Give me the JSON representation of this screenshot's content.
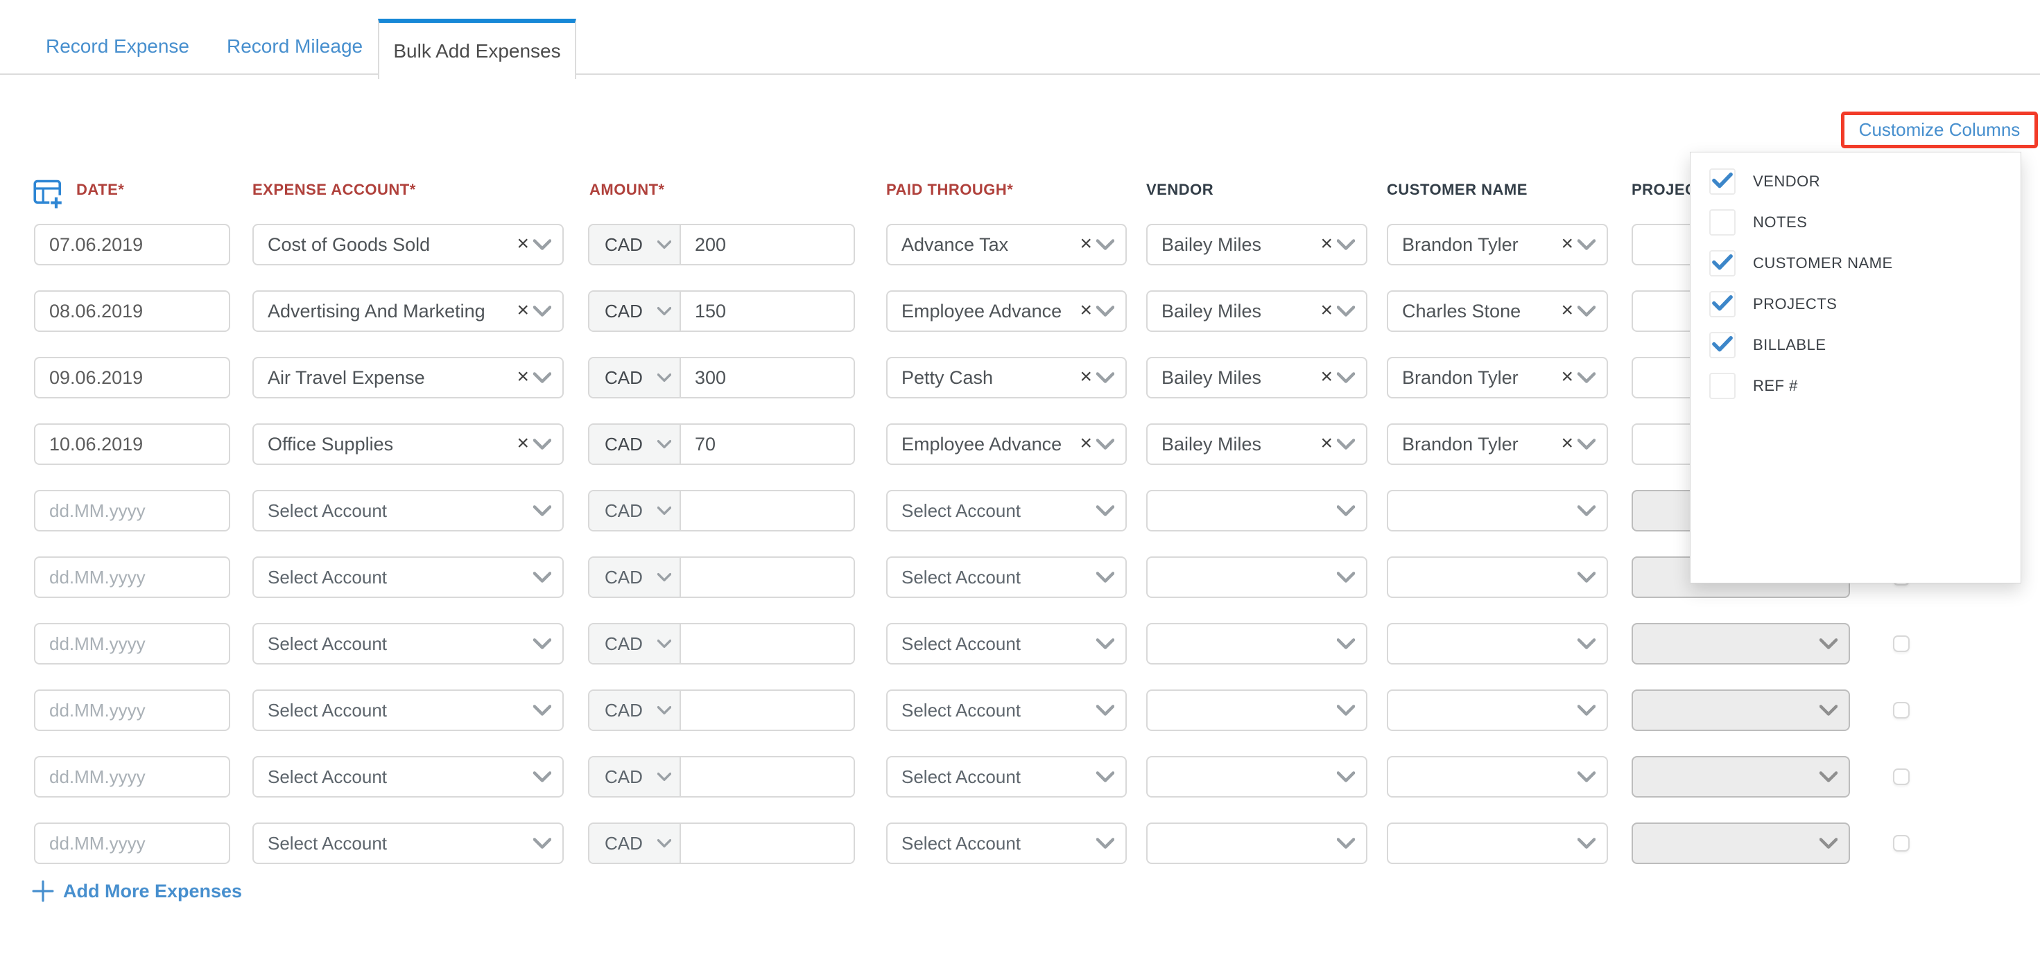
{
  "tabs": {
    "items": [
      {
        "label": "Record Expense",
        "active": false
      },
      {
        "label": "Record Mileage",
        "active": false
      },
      {
        "label": "Bulk Add Expenses",
        "active": true
      }
    ]
  },
  "toolbar": {
    "customize_columns_label": "Customize Columns"
  },
  "columns_menu": {
    "items": [
      {
        "label": "VENDOR",
        "checked": true
      },
      {
        "label": "NOTES",
        "checked": false
      },
      {
        "label": "CUSTOMER NAME",
        "checked": true
      },
      {
        "label": "PROJECTS",
        "checked": true
      },
      {
        "label": "BILLABLE",
        "checked": true
      },
      {
        "label": "REF #",
        "checked": false
      }
    ]
  },
  "table": {
    "headers": {
      "date": "DATE*",
      "expense_account": "EXPENSE ACCOUNT*",
      "amount": "AMOUNT*",
      "paid_through": "PAID THROUGH*",
      "vendor": "VENDOR",
      "customer_name": "CUSTOMER NAME",
      "projects": "PROJECTS"
    },
    "placeholders": {
      "date": "dd.MM.yyyy",
      "account": "Select Account"
    },
    "currency": "CAD",
    "rows": [
      {
        "date": "07.06.2019",
        "expense_account": "Cost of Goods Sold",
        "amount": "200",
        "paid_through": "Advance Tax",
        "vendor": "Bailey Miles",
        "customer_name": "Brandon Tyler"
      },
      {
        "date": "08.06.2019",
        "expense_account": "Advertising And Marketing",
        "amount": "150",
        "paid_through": "Employee Advance",
        "vendor": "Bailey Miles",
        "customer_name": "Charles Stone"
      },
      {
        "date": "09.06.2019",
        "expense_account": "Air Travel Expense",
        "amount": "300",
        "paid_through": "Petty Cash",
        "vendor": "Bailey Miles",
        "customer_name": "Brandon Tyler"
      },
      {
        "date": "10.06.2019",
        "expense_account": "Office Supplies",
        "amount": "70",
        "paid_through": "Employee Advance",
        "vendor": "Bailey Miles",
        "customer_name": "Brandon Tyler"
      },
      {},
      {},
      {},
      {},
      {},
      {}
    ]
  },
  "footer": {
    "add_more_label": "Add More Expenses"
  }
}
